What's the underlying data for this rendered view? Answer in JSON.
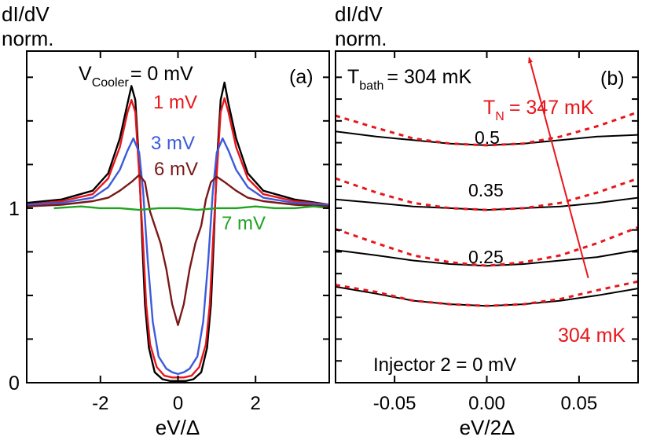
{
  "chart_data": [
    {
      "panel": "(a)",
      "type": "line",
      "ylabel_line1": "dI/dV",
      "ylabel_line2": "norm.",
      "xlabel": "eV/Δ",
      "xlim": [
        -3.9,
        3.9
      ],
      "ylim": [
        0,
        1.9
      ],
      "xticks": [
        -2,
        0,
        2
      ],
      "xtick_labels": [
        "-2",
        "0",
        "2"
      ],
      "yticks_labeled": [
        0,
        1
      ],
      "ytick_labels": [
        "0",
        "1"
      ],
      "title_prefix": "V",
      "title_sub": "Cooler",
      "title_suffix": "= 0 mV",
      "series": [
        {
          "name": "0 mV",
          "color": "#000000",
          "label": "",
          "x": [
            -3.9,
            -3.0,
            -2.2,
            -1.8,
            -1.5,
            -1.3,
            -1.2,
            -1.1,
            -1.0,
            -0.92,
            -0.85,
            -0.75,
            -0.6,
            -0.4,
            -0.2,
            0.0,
            0.2,
            0.4,
            0.6,
            0.75,
            0.85,
            0.92,
            1.0,
            1.1,
            1.2,
            1.3,
            1.5,
            1.8,
            2.2,
            3.0,
            3.9
          ],
          "y": [
            1.03,
            1.05,
            1.1,
            1.2,
            1.4,
            1.6,
            1.7,
            1.62,
            1.25,
            0.8,
            0.45,
            0.2,
            0.06,
            0.02,
            0.01,
            0.01,
            0.01,
            0.02,
            0.06,
            0.2,
            0.45,
            0.8,
            1.25,
            1.62,
            1.72,
            1.6,
            1.4,
            1.2,
            1.1,
            1.05,
            1.02
          ]
        },
        {
          "name": "1 mV",
          "color": "#e8161b",
          "label": "1 mV",
          "x": [
            -3.9,
            -3.0,
            -2.2,
            -1.8,
            -1.5,
            -1.3,
            -1.2,
            -1.1,
            -1.0,
            -0.9,
            -0.82,
            -0.72,
            -0.55,
            -0.35,
            -0.15,
            0.0,
            0.15,
            0.35,
            0.55,
            0.72,
            0.82,
            0.9,
            1.0,
            1.1,
            1.2,
            1.3,
            1.5,
            1.8,
            2.2,
            3.0,
            3.9
          ],
          "y": [
            1.02,
            1.04,
            1.08,
            1.17,
            1.35,
            1.55,
            1.62,
            1.55,
            1.2,
            0.8,
            0.45,
            0.22,
            0.09,
            0.04,
            0.03,
            0.03,
            0.03,
            0.04,
            0.09,
            0.22,
            0.45,
            0.8,
            1.2,
            1.55,
            1.63,
            1.55,
            1.35,
            1.17,
            1.08,
            1.04,
            1.02
          ]
        },
        {
          "name": "3 mV",
          "color": "#3b5bdb",
          "label": "3 mV",
          "x": [
            -3.9,
            -3.0,
            -2.2,
            -1.8,
            -1.5,
            -1.3,
            -1.15,
            -1.0,
            -0.9,
            -0.78,
            -0.65,
            -0.5,
            -0.3,
            -0.15,
            0.0,
            0.15,
            0.3,
            0.5,
            0.65,
            0.78,
            0.9,
            1.0,
            1.15,
            1.3,
            1.5,
            1.8,
            2.2,
            3.0,
            3.9
          ],
          "y": [
            1.02,
            1.03,
            1.06,
            1.12,
            1.22,
            1.33,
            1.4,
            1.32,
            1.1,
            0.7,
            0.35,
            0.15,
            0.08,
            0.06,
            0.05,
            0.06,
            0.08,
            0.15,
            0.35,
            0.7,
            1.1,
            1.32,
            1.4,
            1.33,
            1.22,
            1.12,
            1.06,
            1.03,
            1.02
          ]
        },
        {
          "name": "6 mV",
          "color": "#7a1818",
          "label": "6 mV",
          "x": [
            -3.9,
            -3.0,
            -2.2,
            -1.8,
            -1.5,
            -1.2,
            -1.0,
            -0.85,
            -0.72,
            -0.6,
            -0.45,
            -0.3,
            -0.15,
            0.0,
            0.15,
            0.3,
            0.45,
            0.6,
            0.72,
            0.85,
            1.0,
            1.2,
            1.5,
            1.8,
            2.2,
            3.0,
            3.9
          ],
          "y": [
            1.01,
            1.02,
            1.04,
            1.06,
            1.1,
            1.15,
            1.19,
            1.15,
            0.98,
            0.9,
            0.8,
            0.65,
            0.45,
            0.33,
            0.45,
            0.65,
            0.8,
            0.9,
            1.05,
            1.15,
            1.18,
            1.15,
            1.1,
            1.06,
            1.04,
            1.02,
            1.01
          ]
        },
        {
          "name": "7 mV",
          "color": "#21a321",
          "label": "7 mV",
          "x": [
            -3.2,
            -2.5,
            -2.0,
            -1.5,
            -1.0,
            -0.5,
            0.0,
            0.5,
            1.0,
            1.5,
            2.0,
            2.5,
            3.0,
            3.5,
            3.9
          ],
          "y": [
            1.0,
            1.01,
            1.0,
            1.0,
            0.99,
            1.0,
            1.0,
            0.99,
            1.0,
            1.0,
            1.01,
            1.0,
            1.0,
            1.01,
            1.0
          ]
        }
      ]
    },
    {
      "panel": "(b)",
      "type": "line",
      "ylabel_line1": "dI/dV",
      "ylabel_line2": "norm.",
      "xlabel": "eV/2Δ",
      "xlim": [
        -0.082,
        0.082
      ],
      "ylim": [
        0,
        1.9
      ],
      "xticks": [
        -0.05,
        0.0,
        0.05
      ],
      "xtick_labels": [
        "-0.05",
        "0.00",
        "0.05"
      ],
      "title_prefix": "T",
      "title_sub": "bath",
      "title_suffix": "= 304 mK",
      "annotation_top_prefix": "T",
      "annotation_top_sub": "N",
      "annotation_top_suffix": "= 347 mK",
      "annotation_bottom": "304 mK",
      "footer_label": "Injector 2 = 0 mV",
      "injector_labels": [
        "0.5",
        "0.35",
        "0.25"
      ],
      "arrow_from": [
        0.055,
        0.6
      ],
      "arrow_to": [
        0.023,
        1.86
      ],
      "series": [
        {
          "name": "0.5 measured",
          "color": "#000000",
          "style": "solid",
          "x": [
            -0.082,
            -0.06,
            -0.04,
            -0.02,
            0.0,
            0.02,
            0.04,
            0.06,
            0.082
          ],
          "y": [
            1.44,
            1.41,
            1.39,
            1.37,
            1.36,
            1.37,
            1.39,
            1.41,
            1.42
          ]
        },
        {
          "name": "0.5 fit",
          "color": "#e8161b",
          "style": "dashed",
          "x": [
            -0.082,
            -0.06,
            -0.04,
            -0.02,
            0.0,
            0.02,
            0.04,
            0.06,
            0.082
          ],
          "y": [
            1.53,
            1.46,
            1.4,
            1.37,
            1.36,
            1.37,
            1.41,
            1.47,
            1.55
          ]
        },
        {
          "name": "0.35 measured",
          "color": "#000000",
          "style": "solid",
          "x": [
            -0.082,
            -0.06,
            -0.04,
            -0.02,
            0.0,
            0.02,
            0.04,
            0.06,
            0.082
          ],
          "y": [
            1.05,
            1.03,
            1.01,
            1.0,
            0.99,
            1.0,
            1.01,
            1.03,
            1.06
          ]
        },
        {
          "name": "0.35 fit",
          "color": "#e8161b",
          "style": "dashed",
          "x": [
            -0.082,
            -0.06,
            -0.04,
            -0.02,
            0.0,
            0.02,
            0.04,
            0.06,
            0.082
          ],
          "y": [
            1.17,
            1.09,
            1.03,
            1.0,
            0.99,
            1.0,
            1.03,
            1.09,
            1.17
          ]
        },
        {
          "name": "0.25 measured",
          "color": "#000000",
          "style": "solid",
          "x": [
            -0.082,
            -0.06,
            -0.04,
            -0.02,
            0.0,
            0.02,
            0.04,
            0.06,
            0.082
          ],
          "y": [
            0.76,
            0.73,
            0.7,
            0.68,
            0.67,
            0.68,
            0.7,
            0.72,
            0.76
          ]
        },
        {
          "name": "0.25 fit",
          "color": "#e8161b",
          "style": "dashed",
          "x": [
            -0.082,
            -0.06,
            -0.04,
            -0.02,
            0.0,
            0.02,
            0.04,
            0.06,
            0.082
          ],
          "y": [
            0.88,
            0.8,
            0.73,
            0.69,
            0.67,
            0.69,
            0.73,
            0.8,
            0.89
          ]
        },
        {
          "name": "304 measured",
          "color": "#000000",
          "style": "solid",
          "x": [
            -0.082,
            -0.06,
            -0.04,
            -0.02,
            0.0,
            0.02,
            0.04,
            0.06,
            0.082
          ],
          "y": [
            0.55,
            0.51,
            0.47,
            0.45,
            0.44,
            0.45,
            0.47,
            0.5,
            0.54
          ]
        },
        {
          "name": "304 fit",
          "color": "#e8161b",
          "style": "dashed",
          "x": [
            -0.082,
            -0.06,
            -0.04,
            -0.02,
            0.0,
            0.02,
            0.04,
            0.06,
            0.082
          ],
          "y": [
            0.56,
            0.52,
            0.47,
            0.45,
            0.44,
            0.45,
            0.48,
            0.53,
            0.58
          ]
        }
      ]
    }
  ]
}
